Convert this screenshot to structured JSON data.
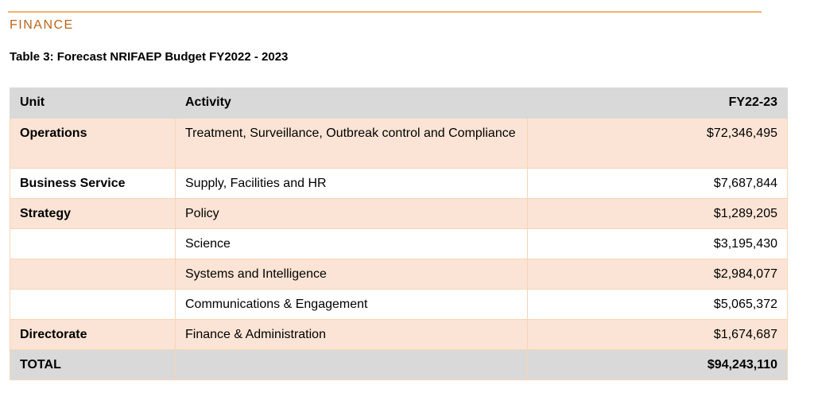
{
  "header": {
    "section": "FINANCE",
    "title": "Table 3: Forecast NRIFAEP Budget FY2022 - 2023"
  },
  "table": {
    "columns": [
      "Unit",
      "Activity",
      "FY22-23"
    ],
    "rows": [
      {
        "unit": "Operations",
        "activity": "Treatment, Surveillance, Outbreak control and Compliance",
        "amount": "$72,346,495"
      },
      {
        "unit": "Business Service",
        "activity": "Supply, Facilities and HR",
        "amount": "$7,687,844"
      },
      {
        "unit": "Strategy",
        "activity": "Policy",
        "amount": "$1,289,205"
      },
      {
        "activity": "Science",
        "amount": "$3,195,430"
      },
      {
        "activity": "Systems and Intelligence",
        "amount": "$2,984,077"
      },
      {
        "activity": "Communications & Engagement",
        "amount": "$5,065,372"
      },
      {
        "unit": "Directorate",
        "activity": "Finance & Administration",
        "amount": "$1,674,687"
      }
    ],
    "total": {
      "unit": "TOTAL",
      "amount": "$94,243,110"
    }
  }
}
